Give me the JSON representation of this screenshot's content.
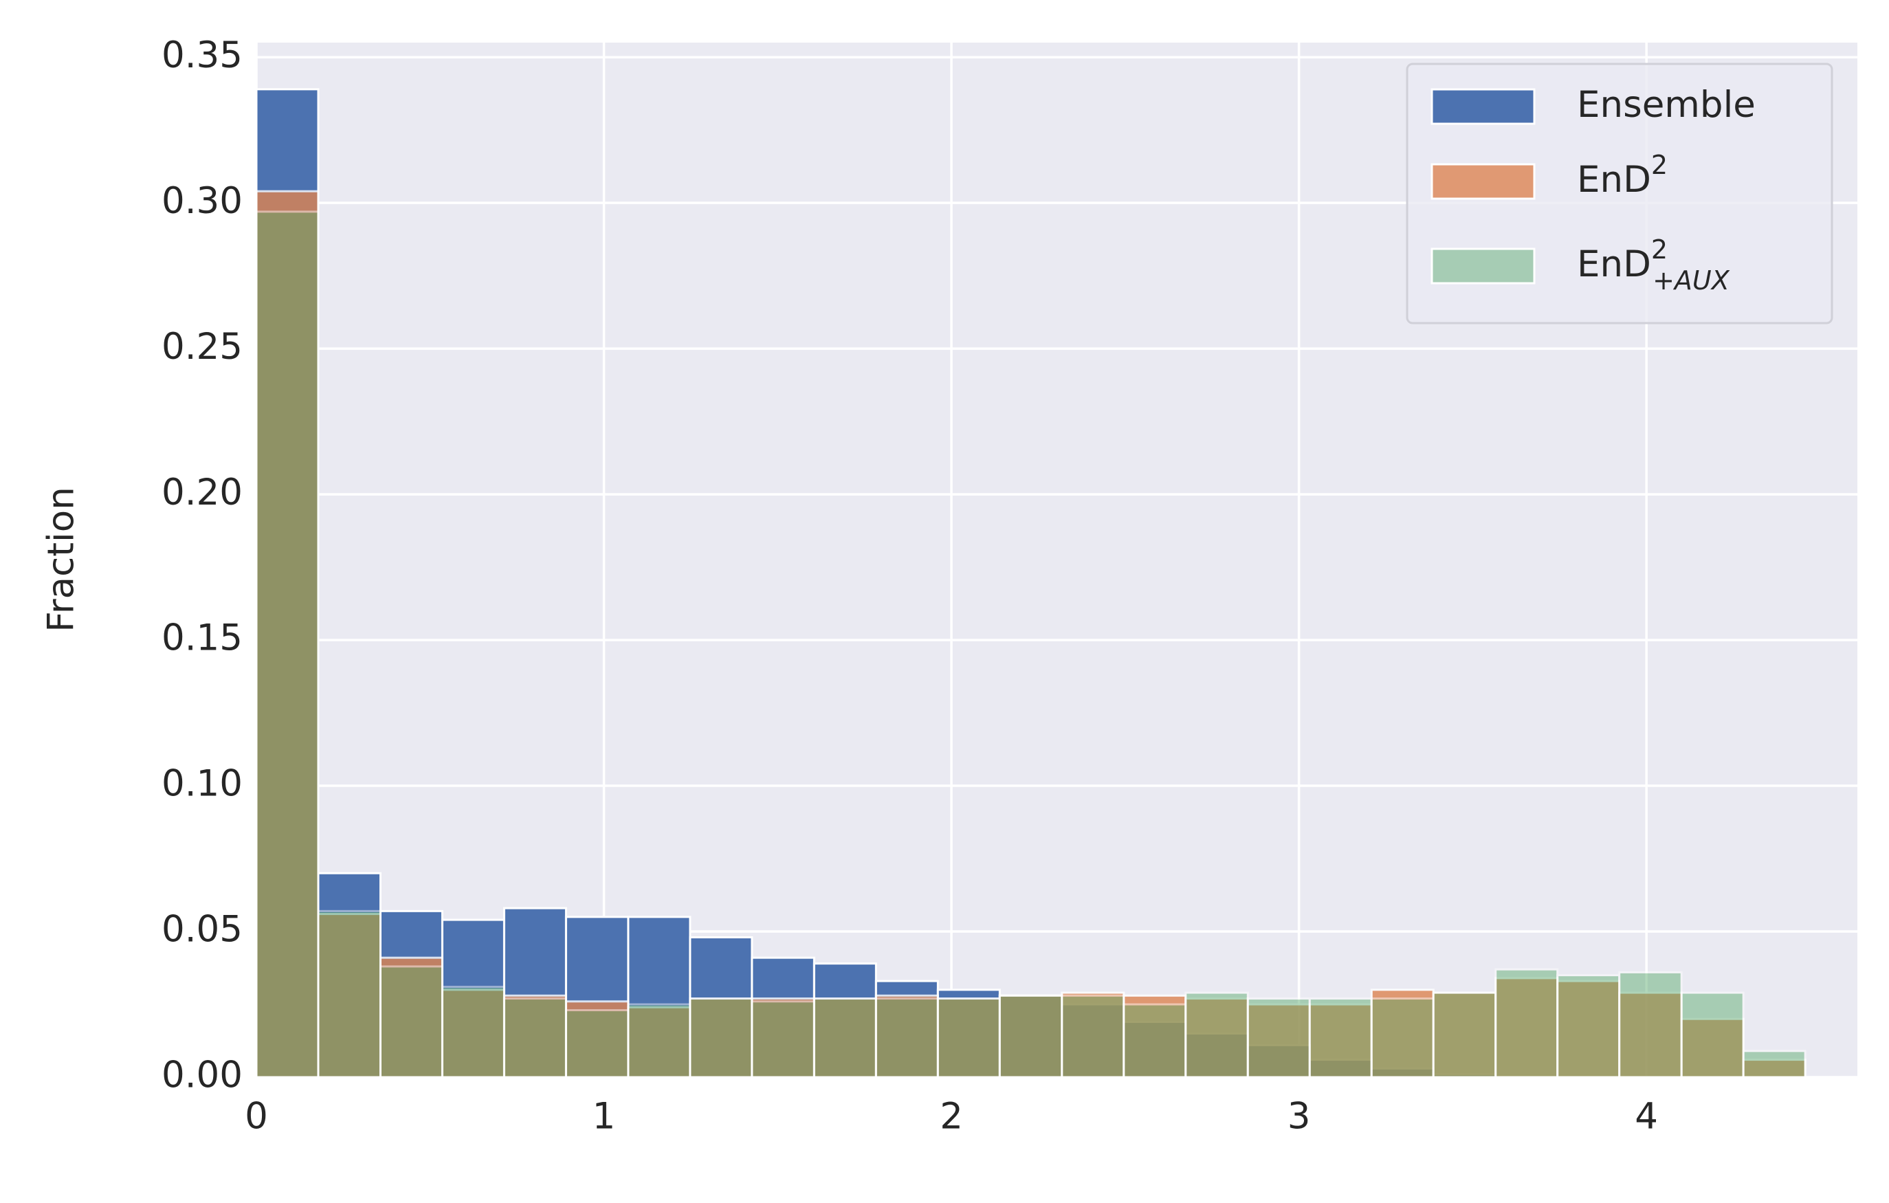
{
  "chart_data": {
    "type": "histogram",
    "ylabel": "Fraction",
    "bins": [
      0,
      0.178,
      0.357,
      0.535,
      0.713,
      0.891,
      1.07,
      1.248,
      1.426,
      1.605,
      1.783,
      1.961,
      2.139,
      2.318,
      2.496,
      2.674,
      2.853,
      3.031,
      3.209,
      3.387,
      3.566,
      3.744,
      3.922,
      4.101,
      4.279,
      4.457
    ],
    "series": [
      {
        "name": "Ensemble",
        "color": "#4c72b0",
        "opacity": 1,
        "values": [
          0.339,
          0.07,
          0.057,
          0.054,
          0.058,
          0.055,
          0.055,
          0.048,
          0.041,
          0.039,
          0.033,
          0.03,
          0.028,
          0.025,
          0.019,
          0.015,
          0.011,
          0.006,
          0.003,
          0.001,
          0,
          0,
          0,
          0,
          0
        ]
      },
      {
        "name": "EnD",
        "name_sup": "2",
        "color": "#dd8452",
        "opacity": 0.8,
        "values": [
          0.304,
          0.056,
          0.041,
          0.03,
          0.028,
          0.026,
          0.024,
          0.027,
          0.027,
          0.027,
          0.028,
          0.027,
          0.028,
          0.029,
          0.028,
          0.027,
          0.025,
          0.025,
          0.03,
          0.029,
          0.034,
          0.033,
          0.029,
          0.02,
          0.006
        ]
      },
      {
        "name": "EnD",
        "name_sup": "2",
        "name_sub": "+AUX",
        "color": "#55a868",
        "opacity": 0.45,
        "values": [
          0.297,
          0.057,
          0.038,
          0.031,
          0.027,
          0.023,
          0.025,
          0.027,
          0.026,
          0.027,
          0.027,
          0.027,
          0.028,
          0.028,
          0.025,
          0.029,
          0.027,
          0.027,
          0.027,
          0.029,
          0.037,
          0.035,
          0.036,
          0.029,
          0.009
        ]
      }
    ],
    "xlim": [
      0,
      4.607
    ],
    "ylim": [
      0,
      0.355
    ],
    "xticks": [
      0,
      1,
      2,
      3,
      4
    ],
    "yticks": [
      {
        "value": 0,
        "label": "0.00"
      },
      {
        "value": 0.05,
        "label": "0.05"
      },
      {
        "value": 0.1,
        "label": "0.10"
      },
      {
        "value": 0.15,
        "label": "0.15"
      },
      {
        "value": 0.2,
        "label": "0.20"
      },
      {
        "value": 0.25,
        "label": "0.25"
      },
      {
        "value": 0.3,
        "label": "0.30"
      },
      {
        "value": 0.35,
        "label": "0.35"
      }
    ],
    "grid": true,
    "legend": "upper right"
  }
}
